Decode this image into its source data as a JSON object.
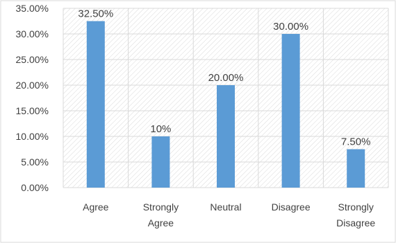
{
  "chart_data": {
    "type": "bar",
    "categories": [
      "Agree",
      "Strongly Agree",
      "Neutral",
      "Disagree",
      "Strongly Disagree"
    ],
    "category_lines": [
      [
        "Agree"
      ],
      [
        "Strongly",
        "Agree"
      ],
      [
        "Neutral"
      ],
      [
        "Disagree"
      ],
      [
        "Strongly",
        "Disagree"
      ]
    ],
    "values": [
      32.5,
      10,
      20,
      30,
      7.5
    ],
    "data_labels": [
      "32.50%",
      "10%",
      "20.00%",
      "30.00%",
      "7.50%"
    ],
    "y_ticks": [
      0,
      5,
      10,
      15,
      20,
      25,
      30,
      35
    ],
    "y_tick_labels": [
      "0.00%",
      "5.00%",
      "10.00%",
      "15.00%",
      "20.00%",
      "25.00%",
      "30.00%",
      "35.00%"
    ],
    "ylim": [
      0,
      35
    ],
    "grid": true,
    "title": "",
    "xlabel": "",
    "ylabel": "",
    "colors": {
      "bar": "#5B9BD5",
      "grid": "#D9D9D9",
      "hatch": "#D9D9D9",
      "frame": "#D9D9D9",
      "text": "#404040"
    }
  }
}
